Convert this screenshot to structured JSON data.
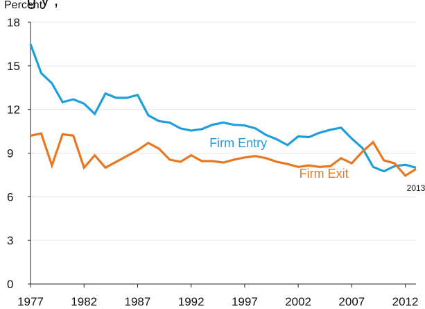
{
  "chart_data": {
    "type": "line",
    "title_partial": "g      y          ,",
    "ylabel": "Percent",
    "xlabel": "",
    "x": [
      1977,
      1978,
      1979,
      1980,
      1981,
      1982,
      1983,
      1984,
      1985,
      1986,
      1987,
      1988,
      1989,
      1990,
      1991,
      1992,
      1993,
      1994,
      1995,
      1996,
      1997,
      1998,
      1999,
      2000,
      2001,
      2002,
      2003,
      2004,
      2005,
      2006,
      2007,
      2008,
      2009,
      2010,
      2011,
      2012,
      2013
    ],
    "series": [
      {
        "name": "Firm Entry",
        "color": "#1f9fd9",
        "values": [
          16.5,
          14.5,
          13.8,
          12.5,
          12.7,
          12.4,
          11.7,
          13.1,
          12.8,
          12.8,
          13.0,
          11.6,
          11.2,
          11.1,
          10.7,
          10.55,
          10.65,
          10.95,
          11.1,
          10.95,
          10.9,
          10.7,
          10.25,
          9.95,
          9.55,
          10.15,
          10.1,
          10.4,
          10.6,
          10.75,
          10.0,
          9.35,
          8.05,
          7.75,
          8.1,
          8.2,
          8.0
        ]
      },
      {
        "name": "Firm Exit",
        "color": "#e87722",
        "values": [
          10.2,
          10.35,
          8.15,
          10.3,
          10.2,
          8.0,
          8.85,
          8.0,
          8.4,
          8.8,
          9.2,
          9.7,
          9.3,
          8.55,
          8.4,
          8.85,
          8.45,
          8.45,
          8.35,
          8.55,
          8.7,
          8.8,
          8.65,
          8.4,
          8.25,
          8.05,
          8.15,
          8.05,
          8.1,
          8.65,
          8.3,
          9.1,
          9.75,
          8.5,
          8.3,
          7.45,
          7.9
        ]
      }
    ],
    "xticks": [
      1977,
      1982,
      1987,
      1992,
      1997,
      2002,
      2007,
      2012
    ],
    "yticks": [
      0,
      3,
      6,
      9,
      12,
      15,
      18
    ],
    "ylim": [
      0,
      18
    ],
    "xlim": [
      1977,
      2013
    ],
    "annotations": [
      {
        "text": "Firm Entry",
        "color": "#1f9fd9"
      },
      {
        "text": "Firm Exit",
        "color": "#e87722"
      },
      {
        "text": "2013",
        "color": "#111111"
      }
    ],
    "grid": "horizontal",
    "legend": "inline labels"
  }
}
